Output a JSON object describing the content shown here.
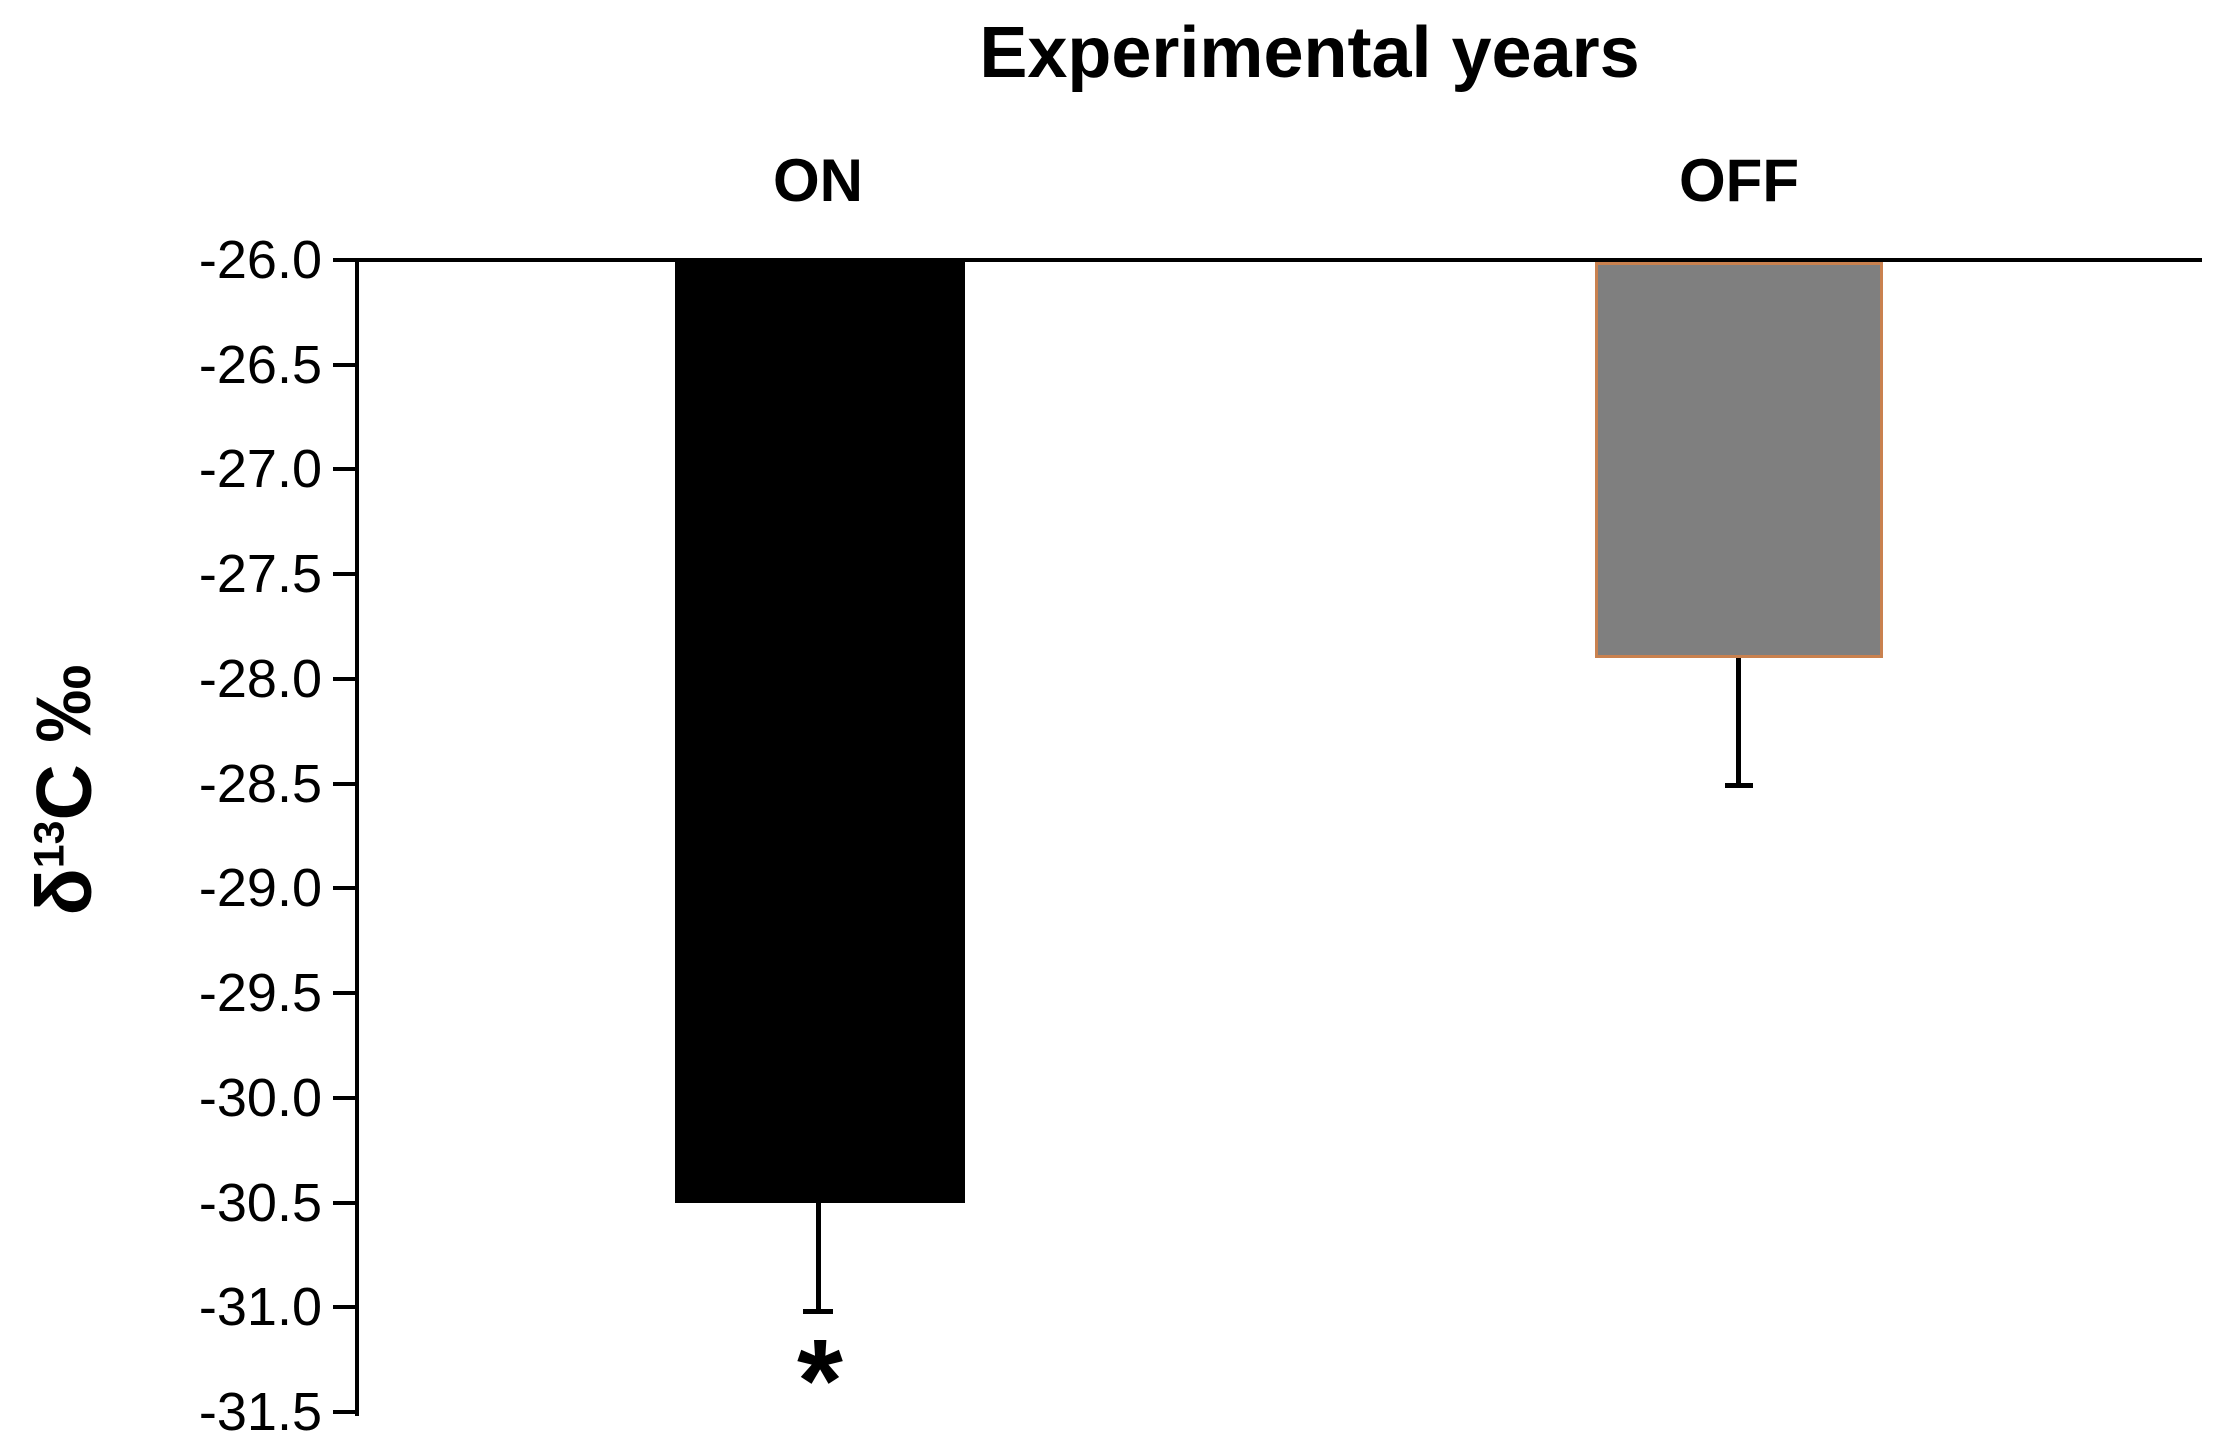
{
  "chart_data": {
    "type": "bar",
    "title": "Experimental years",
    "categories": [
      "ON",
      "OFF"
    ],
    "series": [
      {
        "name": "δ13C",
        "values": [
          -30.5,
          -27.9
        ],
        "errors": [
          0.53,
          0.62
        ],
        "error_direction": "down"
      }
    ],
    "bar_colors": [
      "#000000",
      "#7f7f7f"
    ],
    "bar_border_colors": [
      "#000000",
      "#c9814f"
    ],
    "ylabel": "δ13C ‰",
    "ylabel_parts": {
      "delta": "δ",
      "sup": "13",
      "rest": "C ‰"
    },
    "ylim": [
      -31.5,
      -26.0
    ],
    "ytick_step": 0.5,
    "ytick_labels": [
      "-26.0",
      "-26.5",
      "-27.0",
      "-27.5",
      "-28.0",
      "-28.5",
      "-29.0",
      "-29.5",
      "-30.0",
      "-30.5",
      "-31.0",
      "-31.5"
    ],
    "grid": false,
    "legend_position": "none",
    "annotations": [
      {
        "text": "*",
        "category": "ON",
        "position": "below-error-bar"
      }
    ]
  }
}
